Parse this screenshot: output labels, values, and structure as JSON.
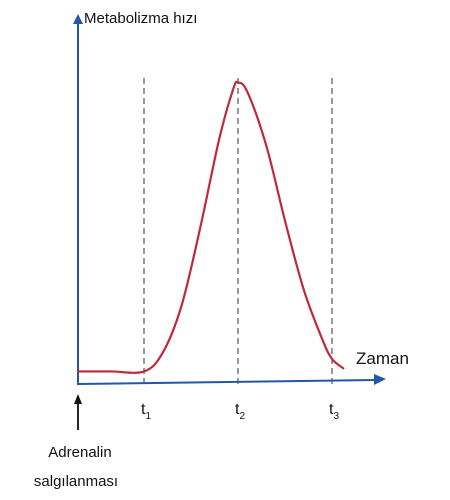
{
  "chart_data": {
    "type": "line",
    "ylabel": "Metabolizma hızı",
    "xlabel": "Zaman",
    "ticks": [
      {
        "base": "t",
        "sub": "1",
        "x": 1
      },
      {
        "base": "t",
        "sub": "2",
        "x": 2
      },
      {
        "base": "t",
        "sub": "3",
        "x": 3
      }
    ],
    "event_annotation": {
      "lines": [
        "Adrenalin",
        "salgılanması"
      ],
      "x": 0
    },
    "series": [
      {
        "color": "#c0283c",
        "x": [
          0,
          0.5,
          1,
          1.2,
          1.4,
          1.6,
          1.8,
          1.95,
          2,
          2.1,
          2.3,
          2.5,
          2.7,
          2.9,
          3,
          3.12
        ],
        "y": [
          4,
          4,
          4,
          10,
          25,
          50,
          78,
          94,
          96,
          93,
          76,
          52,
          30,
          14,
          8,
          5
        ]
      }
    ],
    "xlim": [
      0,
      3.5
    ],
    "ylim": [
      0,
      100
    ],
    "grid": false,
    "guide_lines": "dashed vertical at t1, t2, t3",
    "axis_color": "#2358a8"
  }
}
